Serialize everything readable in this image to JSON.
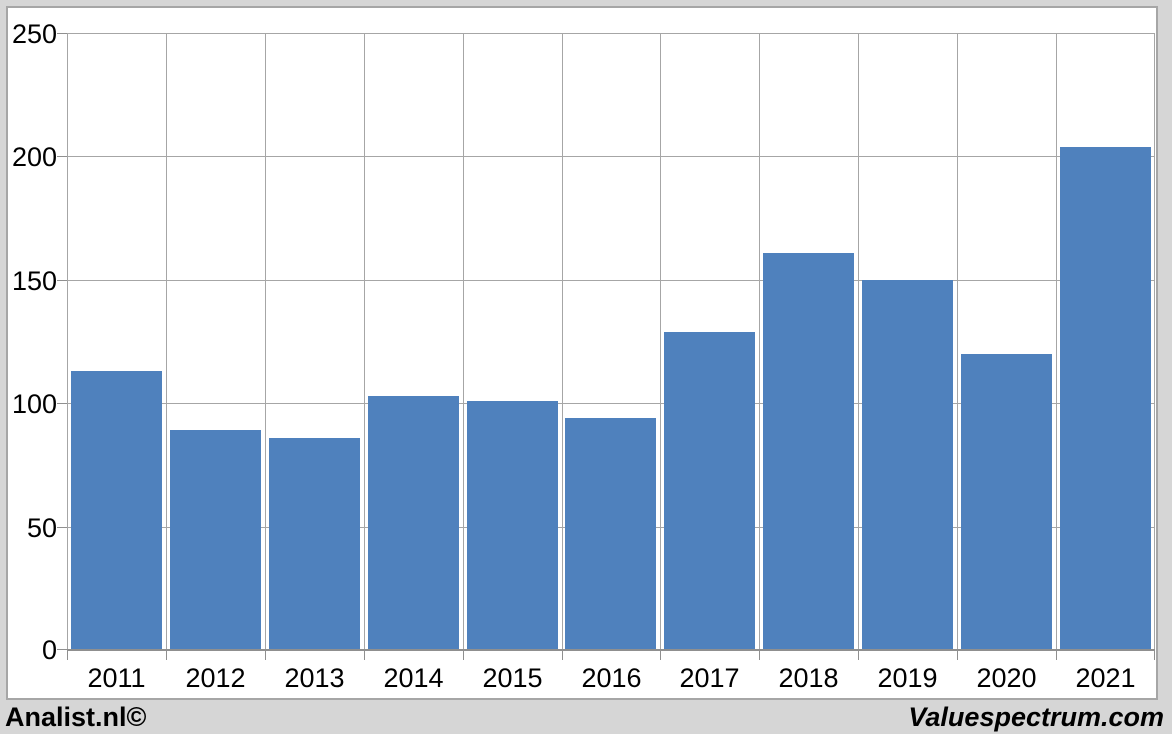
{
  "chart_data": {
    "type": "bar",
    "categories": [
      "2011",
      "2012",
      "2013",
      "2014",
      "2015",
      "2016",
      "2017",
      "2018",
      "2019",
      "2020",
      "2021"
    ],
    "values": [
      113,
      89,
      86,
      103,
      101,
      94,
      129,
      161,
      150,
      120,
      204
    ],
    "title": "",
    "xlabel": "",
    "ylabel": "",
    "ylim": [
      0,
      250
    ],
    "yticks": [
      0,
      50,
      100,
      150,
      200,
      250
    ],
    "grid": true,
    "legend": "none",
    "bar_color": "#4f81bd",
    "gridline_color": "#a6a6a6",
    "axis_color": "#8f8f8f",
    "plot_background": "#ffffff",
    "outer_background": "#d6d6d6"
  },
  "footer": {
    "left_text": "Analist.nl©",
    "right_text": "Valuespectrum.com"
  }
}
